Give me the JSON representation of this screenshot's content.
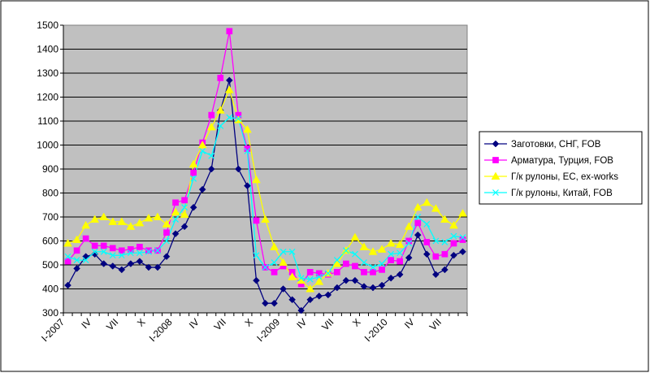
{
  "chart_data": {
    "type": "line",
    "title": "",
    "xlabel": "",
    "ylabel": "",
    "ylim": [
      300,
      1500
    ],
    "yticks": [
      300,
      400,
      500,
      600,
      700,
      800,
      900,
      1000,
      1100,
      1200,
      1300,
      1400,
      1500
    ],
    "grid": "horizontal",
    "legend_position": "right",
    "plot_background": "#c0c0c0",
    "x_labels": [
      {
        "index": 0,
        "label": "I-2007"
      },
      {
        "index": 3,
        "label": "IV"
      },
      {
        "index": 6,
        "label": "VII"
      },
      {
        "index": 9,
        "label": "X"
      },
      {
        "index": 12,
        "label": "I-2008"
      },
      {
        "index": 15,
        "label": "IV"
      },
      {
        "index": 18,
        "label": "VII"
      },
      {
        "index": 21,
        "label": "X"
      },
      {
        "index": 24,
        "label": "I-2009"
      },
      {
        "index": 27,
        "label": "IV"
      },
      {
        "index": 30,
        "label": "VII"
      },
      {
        "index": 33,
        "label": "X"
      },
      {
        "index": 36,
        "label": "I-2010"
      },
      {
        "index": 39,
        "label": "IV"
      },
      {
        "index": 42,
        "label": "VII"
      }
    ],
    "series": [
      {
        "name": "Заготовки, СНГ, FOB",
        "color": "#000080",
        "marker": "diamond",
        "values": [
          415,
          485,
          535,
          545,
          505,
          495,
          480,
          505,
          515,
          490,
          490,
          535,
          630,
          660,
          740,
          815,
          900,
          1145,
          1270,
          900,
          830,
          435,
          340,
          340,
          400,
          355,
          310,
          355,
          370,
          375,
          405,
          435,
          435,
          410,
          405,
          415,
          445,
          460,
          530,
          625,
          545,
          460,
          480,
          540,
          555
        ]
      },
      {
        "name": "Арматура, Турция, FOB",
        "color": "#ff00ff",
        "marker": "square",
        "values": [
          515,
          560,
          610,
          580,
          580,
          570,
          560,
          565,
          575,
          560,
          560,
          635,
          760,
          770,
          885,
          1010,
          1125,
          1280,
          1475,
          1125,
          985,
          685,
          490,
          470,
          495,
          470,
          420,
          470,
          465,
          460,
          470,
          505,
          495,
          470,
          470,
          480,
          520,
          515,
          600,
          675,
          595,
          535,
          545,
          590,
          605
        ]
      },
      {
        "name": "Г/к рулоны, ЕС, ex-works",
        "color": "#ffff00",
        "marker": "triangle",
        "values": [
          590,
          605,
          665,
          690,
          700,
          680,
          680,
          660,
          675,
          695,
          700,
          670,
          720,
          710,
          920,
          1000,
          1075,
          1145,
          1230,
          1105,
          1065,
          855,
          690,
          575,
          510,
          450,
          435,
          400,
          430,
          465,
          505,
          560,
          615,
          575,
          555,
          565,
          590,
          585,
          660,
          740,
          760,
          735,
          690,
          665,
          715
        ]
      },
      {
        "name": "Г/к рулоны, Китай, FOB",
        "color": "#00ffff",
        "marker": "x",
        "values": [
          535,
          520,
          520,
          555,
          555,
          540,
          540,
          550,
          550,
          555,
          560,
          600,
          690,
          740,
          860,
          975,
          955,
          1080,
          1115,
          1110,
          975,
          540,
          490,
          510,
          555,
          555,
          445,
          440,
          450,
          465,
          520,
          560,
          545,
          510,
          490,
          505,
          545,
          550,
          590,
          700,
          670,
          600,
          595,
          620,
          615
        ]
      }
    ]
  }
}
